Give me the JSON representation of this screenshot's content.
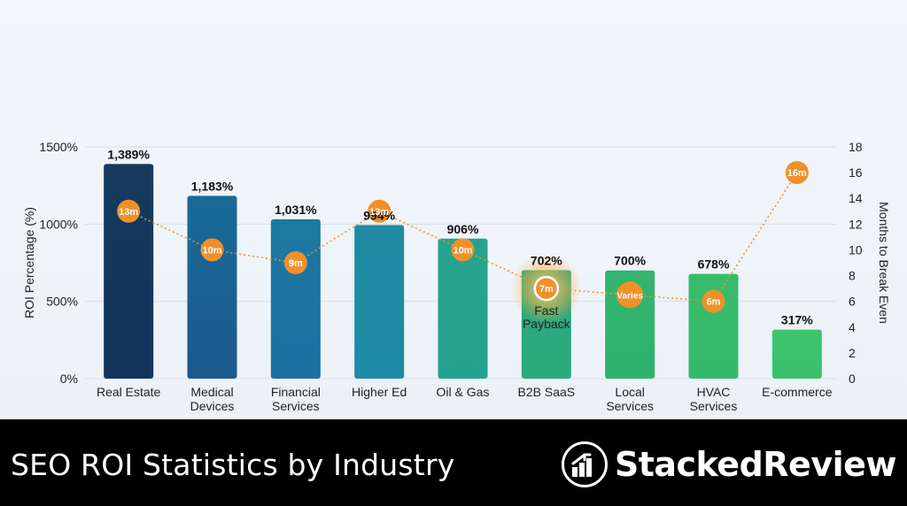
{
  "chart_data": {
    "type": "bar",
    "title": "",
    "ylabel": "ROI Percentage (%)",
    "y2label": "Months to Break Even",
    "ylim": [
      0,
      1500
    ],
    "y2lim": [
      0,
      18
    ],
    "yticks": [
      "0%",
      "500%",
      "1000%",
      "1500%"
    ],
    "y2ticks": [
      "0",
      "2",
      "4",
      "6",
      "8",
      "10",
      "12",
      "14",
      "16",
      "18"
    ],
    "categories": [
      "Real Estate",
      "Medical\nDevices",
      "Financial\nServices",
      "Higher Ed",
      "Oil & Gas",
      "B2B SaaS",
      "Local\nServices",
      "HVAC\nServices",
      "E-commerce"
    ],
    "series": [
      {
        "values": [
          1389,
          1183,
          1031,
          994,
          906,
          702,
          700,
          678,
          317
        ],
        "labels": [
          "1,389%",
          "1,183%",
          "1,031%",
          "994%",
          "906%",
          "702%",
          "700%",
          "678%",
          "317%"
        ]
      },
      {
        "values": [
          13,
          10,
          9,
          13,
          10,
          7,
          6.5,
          6,
          16
        ],
        "labels": [
          "13m",
          "10m",
          "9m",
          "13m",
          "10m",
          "7m",
          "Varies",
          "6m",
          "16m"
        ]
      }
    ],
    "highlight": {
      "index": 5,
      "text": "Fast Payback"
    },
    "grid": true,
    "colors": {
      "bar_top_dark": "#1a5d8a",
      "bar_green": "#3bbf6e",
      "marker": "#f0902a",
      "line": "#e8932e"
    }
  },
  "footer": {
    "title": "SEO ROI Statistics by Industry",
    "brand": "StackedReview"
  }
}
